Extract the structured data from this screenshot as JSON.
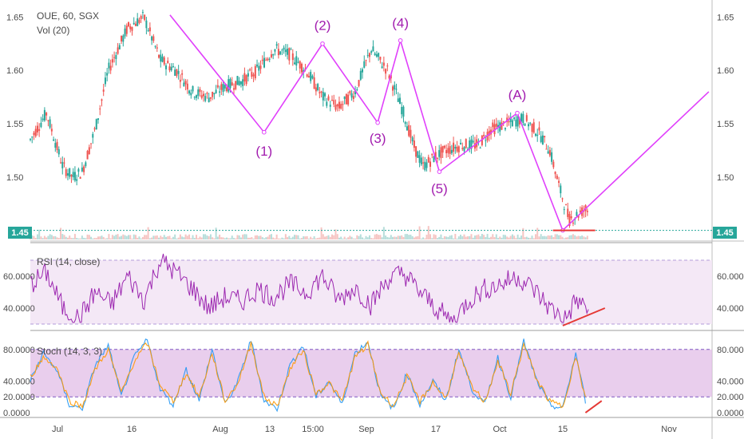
{
  "header": {
    "symbol": "OUE, 60, SGX",
    "volume": "Vol (20)"
  },
  "colors": {
    "up": "#26a69a",
    "down": "#ef5350",
    "wave": "#e040fb",
    "wave_text": "#a21caf",
    "rsi": "#9c27b0",
    "band": "#e9d5ff",
    "stoch_k": "#2196f3",
    "stoch_d": "#ff9800",
    "trend": "#e53935",
    "badge": "#26a69a"
  },
  "chart_data": [
    {
      "type": "line",
      "title": "OUE, 60, SGX",
      "subtitle": "Vol (20)",
      "ylim": [
        1.44,
        1.66
      ],
      "yticks": [
        "1.65",
        "1.60",
        "1.55",
        "1.50"
      ],
      "last_price": "1.45",
      "x_ticks": [
        "Jul",
        "16",
        "Aug",
        "13",
        "15:00",
        "Sep",
        "17",
        "Oct",
        "15",
        "Nov"
      ],
      "price_path": {
        "x": [
          0,
          5,
          10,
          13,
          16,
          20,
          24,
          30,
          35,
          40,
          45,
          50,
          55,
          60,
          65,
          70,
          75,
          80,
          85,
          90,
          95,
          100,
          105,
          110,
          115,
          118,
          121,
          125,
          128,
          133,
          138,
          142,
          147,
          152,
          157,
          160,
          163,
          166,
          171,
          177,
          183,
          190,
          200
        ],
        "y": [
          1.535,
          1.56,
          1.51,
          1.5,
          1.505,
          1.545,
          1.6,
          1.64,
          1.65,
          1.61,
          1.6,
          1.58,
          1.575,
          1.585,
          1.59,
          1.6,
          1.62,
          1.615,
          1.6,
          1.575,
          1.565,
          1.58,
          1.62,
          1.6,
          1.56,
          1.53,
          1.51,
          1.52,
          1.525,
          1.53,
          1.53,
          1.545,
          1.55,
          1.555,
          1.54,
          1.525,
          1.49,
          1.46,
          1.47,
          1.455,
          1.455,
          1.455,
          1.455
        ]
      },
      "waves": [
        {
          "points": [
            {
              "x": 43,
              "y": 1.652
            },
            {
              "x": 72,
              "y": 1.542
            },
            {
              "x": 90,
              "y": 1.625
            },
            {
              "x": 107,
              "y": 1.551
            },
            {
              "x": 114,
              "y": 1.628
            },
            {
              "x": 126,
              "y": 1.505
            },
            {
              "x": 150,
              "y": 1.56
            },
            {
              "x": 164,
              "y": 1.45
            },
            {
              "x": 209,
              "y": 1.58
            }
          ]
        }
      ],
      "wave_labels": [
        {
          "text": "(1)",
          "x": 72,
          "y": 1.52
        },
        {
          "text": "(2)",
          "x": 90,
          "y": 1.638
        },
        {
          "text": "(3)",
          "x": 107,
          "y": 1.532
        },
        {
          "text": "(4)",
          "x": 114,
          "y": 1.64
        },
        {
          "text": "(5)",
          "x": 126,
          "y": 1.485
        },
        {
          "text": "(A)",
          "x": 150,
          "y": 1.573
        }
      ],
      "support": {
        "x1": 161,
        "x2": 174,
        "y": 1.45
      }
    },
    {
      "type": "line",
      "title": "RSI (14, close)",
      "ylim": [
        26,
        80
      ],
      "bands": [
        30,
        70
      ],
      "yticks": [
        "60.0000",
        "40.0000"
      ],
      "path": {
        "x": [
          0,
          5,
          10,
          15,
          20,
          25,
          30,
          35,
          40,
          45,
          50,
          55,
          60,
          65,
          70,
          75,
          80,
          85,
          90,
          95,
          100,
          105,
          110,
          115,
          120,
          125,
          130,
          135,
          140,
          145,
          150,
          155,
          160,
          165,
          168,
          172
        ],
        "y": [
          55,
          62,
          40,
          33,
          50,
          42,
          60,
          45,
          70,
          62,
          52,
          40,
          47,
          44,
          52,
          47,
          55,
          50,
          60,
          45,
          53,
          42,
          58,
          62,
          50,
          40,
          31,
          45,
          52,
          55,
          60,
          52,
          40,
          33,
          45,
          39
        ]
      },
      "trendline": {
        "x1": 164,
        "y1": 29,
        "x2": 177,
        "y2": 40
      }
    },
    {
      "type": "line",
      "title": "Stoch (14, 3, 3)",
      "ylim": [
        -5,
        100
      ],
      "bands": [
        20,
        80
      ],
      "yticks": [
        "80.0000",
        "40.0000",
        "20.0000",
        "0.0000"
      ],
      "series": [
        {
          "x": [
            0,
            4,
            8,
            12,
            16,
            20,
            24,
            28,
            32,
            36,
            40,
            44,
            48,
            52,
            56,
            60,
            64,
            68,
            72,
            76,
            80,
            84,
            88,
            92,
            96,
            100,
            104,
            108,
            112,
            116,
            120,
            124,
            128,
            132,
            136,
            140,
            144,
            148,
            152,
            156,
            160,
            164,
            168,
            171
          ],
          "y": [
            40,
            75,
            55,
            10,
            5,
            60,
            85,
            20,
            70,
            92,
            30,
            10,
            55,
            15,
            80,
            10,
            40,
            92,
            15,
            5,
            60,
            85,
            20,
            40,
            10,
            75,
            90,
            20,
            5,
            50,
            10,
            40,
            15,
            80,
            30,
            10,
            70,
            20,
            90,
            40,
            10,
            5,
            75,
            15
          ]
        },
        {
          "x": [
            0,
            4,
            8,
            12,
            16,
            20,
            24,
            28,
            32,
            36,
            40,
            44,
            48,
            52,
            56,
            60,
            64,
            68,
            72,
            76,
            80,
            84,
            88,
            92,
            96,
            100,
            104,
            108,
            112,
            116,
            120,
            124,
            128,
            132,
            136,
            140,
            144,
            148,
            152,
            156,
            160,
            164,
            168,
            171
          ],
          "y": [
            45,
            70,
            58,
            15,
            8,
            55,
            80,
            25,
            65,
            88,
            35,
            14,
            50,
            20,
            75,
            14,
            38,
            88,
            20,
            8,
            55,
            80,
            24,
            38,
            14,
            70,
            86,
            24,
            9,
            46,
            14,
            38,
            18,
            75,
            32,
            14,
            65,
            24,
            86,
            42,
            14,
            8,
            70,
            18
          ]
        }
      ],
      "trendline": {
        "x1": 171,
        "y1": 0,
        "x2": 176,
        "y2": 15
      }
    }
  ]
}
